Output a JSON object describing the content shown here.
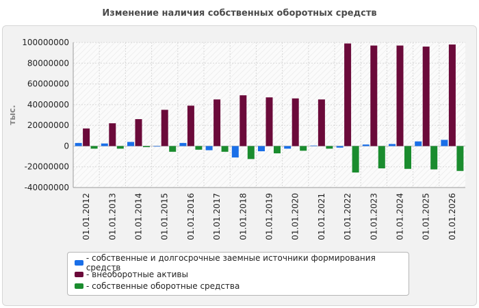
{
  "chart_data": {
    "type": "bar",
    "title": "Изменение наличия собственных оборотных средств",
    "ylabel": "тыс.",
    "xlabel": "",
    "ylim": [
      -40000000,
      100000000
    ],
    "yticks": [
      100000000,
      80000000,
      60000000,
      40000000,
      20000000,
      0,
      -20000000,
      -40000000
    ],
    "categories": [
      "01.01.2012",
      "01.01.2013",
      "01.01.2014",
      "01.01.2015",
      "01.01.2016",
      "01.01.2017",
      "01.01.2018",
      "01.01.2019",
      "01.01.2020",
      "01.01.2021",
      "01.01.2022",
      "01.01.2023",
      "01.01.2024",
      "01.01.2025",
      "01.01.2026"
    ],
    "series": [
      {
        "name": "- собственные и долгосрочные заемные источники формирования средств",
        "color": "#1a6fe8",
        "values": [
          3000000,
          2500000,
          4000000,
          -500000,
          3000000,
          -4000000,
          -11000000,
          -5000000,
          -2500000,
          500000,
          -1500000,
          1500000,
          2000000,
          4500000,
          6000000
        ]
      },
      {
        "name": "- внеоборотные активы",
        "color": "#6b0a3a",
        "values": [
          17000000,
          22000000,
          26000000,
          35000000,
          39000000,
          45000000,
          49000000,
          47000000,
          46000000,
          45000000,
          99000000,
          97000000,
          97000000,
          96000000,
          98000000
        ]
      },
      {
        "name": "- собственные оборотные средства",
        "color": "#1a8c2e",
        "values": [
          -2500000,
          -2500000,
          -1000000,
          -5500000,
          -3500000,
          -5500000,
          -12500000,
          -7000000,
          -4500000,
          -2500000,
          -25500000,
          -21500000,
          -22000000,
          -22500000,
          -24000000
        ]
      }
    ],
    "grid": true,
    "legend_position": "bottom"
  }
}
